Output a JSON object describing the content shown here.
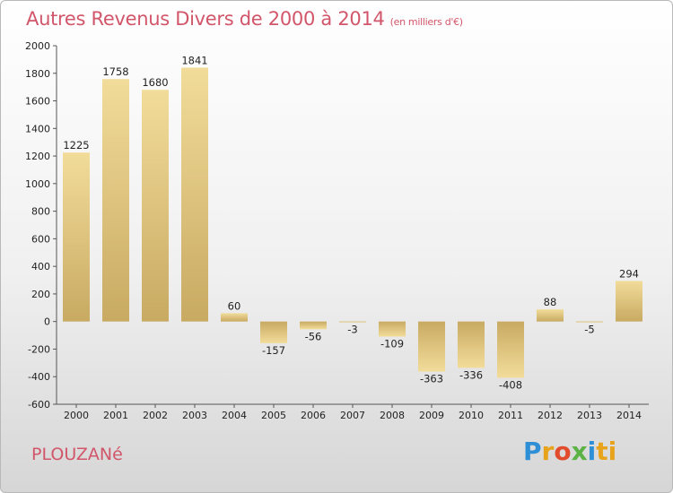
{
  "title": "Autres Revenus Divers de 2000 à 2014",
  "subtitle": "(en milliers d'€)",
  "place": "PLOUZANé",
  "brand": {
    "letters": [
      "P",
      "r",
      "o",
      "x",
      "i",
      "ti"
    ],
    "colors": [
      "#2f8fd6",
      "#e8a31c",
      "#e24b2b",
      "#5bb346",
      "#2f8fd6",
      "#e8a31c"
    ]
  },
  "chart_data": {
    "type": "bar",
    "title": "Autres Revenus Divers de 2000 à 2014",
    "subtitle": "(en milliers d'€)",
    "categories": [
      "2000",
      "2001",
      "2002",
      "2003",
      "2004",
      "2005",
      "2006",
      "2007",
      "2008",
      "2009",
      "2010",
      "2011",
      "2012",
      "2013",
      "2014"
    ],
    "values": [
      1225,
      1758,
      1680,
      1841,
      60,
      -157,
      -56,
      -3,
      -109,
      -363,
      -336,
      -408,
      88,
      -5,
      294
    ],
    "labels": [
      "1225",
      "1758",
      "1680",
      "1841",
      "60",
      "-157",
      "-56",
      "-3",
      "-109",
      "-363",
      "-336",
      "-408",
      "88",
      "-5",
      "294"
    ],
    "ylim": [
      -600,
      2000
    ],
    "yticks": [
      "-600",
      "-400",
      "-200",
      "0",
      "200",
      "400",
      "600",
      "800",
      "1000",
      "1200",
      "1400",
      "1600",
      "1800",
      "2000"
    ],
    "grid": false,
    "bar_color": "#e3c577"
  }
}
